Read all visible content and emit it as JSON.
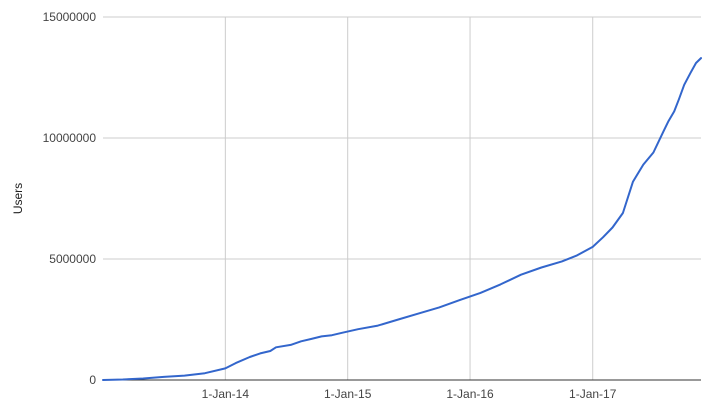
{
  "chart_data": {
    "type": "line",
    "title": "",
    "xlabel": "",
    "ylabel": "Users",
    "ylim": [
      0,
      15000000
    ],
    "xlim": [
      "2013-01-01",
      "2017-11-20"
    ],
    "yticks": [
      0,
      5000000,
      10000000,
      15000000
    ],
    "ytick_labels": [
      "0",
      "5000000",
      "10000000",
      "15000000"
    ],
    "xticks": [
      "2014-01-01",
      "2015-01-01",
      "2016-01-01",
      "2017-01-01"
    ],
    "xtick_labels": [
      "1-Jan-14",
      "1-Jan-15",
      "1-Jan-16",
      "1-Jan-17"
    ],
    "grid": true,
    "legend": "none",
    "colors": {
      "series": "#3366cc",
      "grid": "#cccccc",
      "baseline": "#333333"
    },
    "series": [
      {
        "x": [
          "2013-01-01",
          "2013-03-01",
          "2013-05-01",
          "2013-07-01",
          "2013-09-01",
          "2013-11-01",
          "2014-01-01",
          "2014-02-01",
          "2014-03-15",
          "2014-04-15",
          "2014-05-15",
          "2014-06-01",
          "2014-07-15",
          "2014-08-15",
          "2014-09-15",
          "2014-10-15",
          "2014-11-15",
          "2014-12-15",
          "2015-02-01",
          "2015-04-01",
          "2015-06-01",
          "2015-08-01",
          "2015-10-01",
          "2015-12-01",
          "2016-02-01",
          "2016-04-01",
          "2016-06-01",
          "2016-08-01",
          "2016-10-01",
          "2016-11-15",
          "2017-01-01",
          "2017-02-01",
          "2017-03-01",
          "2017-04-01",
          "2017-05-01",
          "2017-06-01",
          "2017-07-01",
          "2017-08-01",
          "2017-08-15",
          "2017-09-01",
          "2017-09-15",
          "2017-10-01",
          "2017-10-20",
          "2017-11-05",
          "2017-11-20"
        ],
        "y": [
          0,
          20000,
          60000,
          130000,
          180000,
          280000,
          480000,
          700000,
          950000,
          1100000,
          1200000,
          1350000,
          1450000,
          1600000,
          1700000,
          1800000,
          1850000,
          1950000,
          2100000,
          2250000,
          2500000,
          2750000,
          3000000,
          3300000,
          3600000,
          3950000,
          4350000,
          4650000,
          4900000,
          5150000,
          5500000,
          5900000,
          6300000,
          6900000,
          8200000,
          8900000,
          9400000,
          10300000,
          10700000,
          11100000,
          11600000,
          12200000,
          12700000,
          13100000,
          13300000
        ]
      }
    ]
  }
}
